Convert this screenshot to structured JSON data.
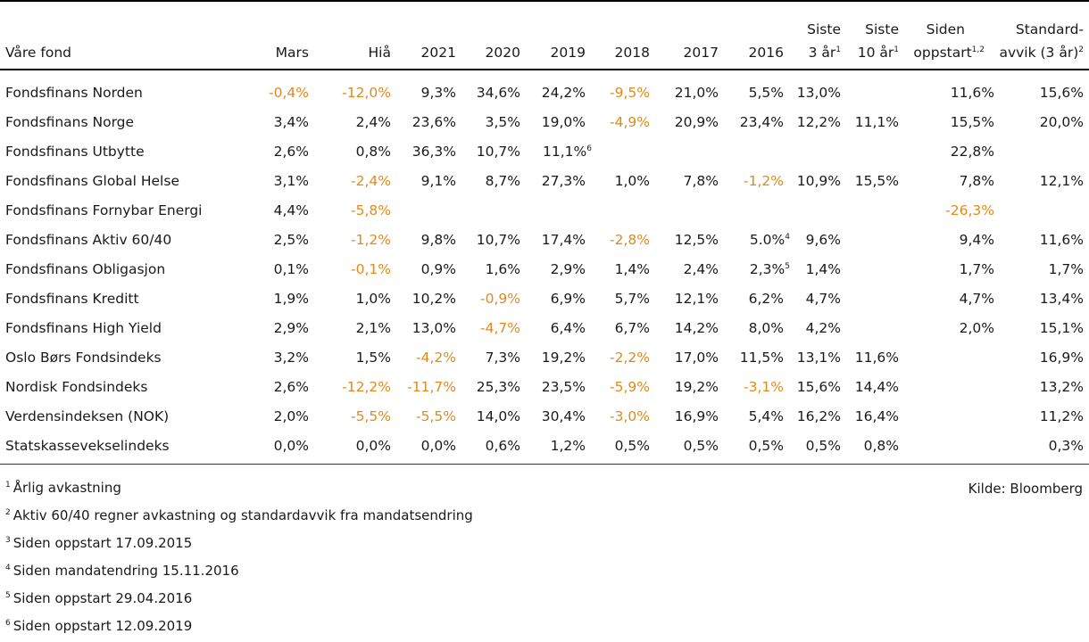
{
  "header": {
    "fund": "Våre fond",
    "mars": "Mars",
    "hia": "Hiå",
    "y2021": "2021",
    "y2020": "2020",
    "y2019": "2019",
    "y2018": "2018",
    "y2017": "2017",
    "y2016": "2016",
    "siste3_line1": "Siste",
    "siste3_line2": "3 år",
    "siste3_sup": "1",
    "siste10_line1": "Siste",
    "siste10_line2": "10 år",
    "siste10_sup": "1",
    "siden_line1": "Siden",
    "siden_line2": "oppstart",
    "siden_sup": "1,2",
    "std_line1": "Standard-",
    "std_line2": "avvik (3 år)",
    "std_sup": "2"
  },
  "rows": [
    {
      "name": "Fondsfinans Norden",
      "mars": "-0,4%",
      "hia": "-12,0%",
      "y2021": "9,3%",
      "y2020": "34,6%",
      "y2019": "24,2%",
      "y2019_sup": "",
      "y2018": "-9,5%",
      "y2017": "21,0%",
      "y2016": "5,5%",
      "y2016_sup": "",
      "s3": "13,0%",
      "s10": "",
      "siden": "11,6%",
      "std": "15,6%"
    },
    {
      "name": "Fondsfinans Norge",
      "mars": "3,4%",
      "hia": "2,4%",
      "y2021": "23,6%",
      "y2020": "3,5%",
      "y2019": "19,0%",
      "y2019_sup": "",
      "y2018": "-4,9%",
      "y2017": "20,9%",
      "y2016": "23,4%",
      "y2016_sup": "",
      "s3": "12,2%",
      "s10": "11,1%",
      "siden": "15,5%",
      "std": "20,0%"
    },
    {
      "name": "Fondsfinans Utbytte",
      "mars": "2,6%",
      "hia": "0,8%",
      "y2021": "36,3%",
      "y2020": "10,7%",
      "y2019": "11,1%",
      "y2019_sup": "6",
      "y2018": "",
      "y2017": "",
      "y2016": "",
      "y2016_sup": "",
      "s3": "",
      "s10": "",
      "siden": "22,8%",
      "std": ""
    },
    {
      "name": "Fondsfinans Global Helse",
      "mars": "3,1%",
      "hia": "-2,4%",
      "y2021": "9,1%",
      "y2020": "8,7%",
      "y2019": "27,3%",
      "y2019_sup": "",
      "y2018": "1,0%",
      "y2017": "7,8%",
      "y2016": "-1,2%",
      "y2016_sup": "",
      "s3": "10,9%",
      "s10": "15,5%",
      "siden": "7,8%",
      "std": "12,1%"
    },
    {
      "name": "Fondsfinans Fornybar Energi",
      "mars": "4,4%",
      "hia": "-5,8%",
      "y2021": "",
      "y2020": "",
      "y2019": "",
      "y2019_sup": "",
      "y2018": "",
      "y2017": "",
      "y2016": "",
      "y2016_sup": "",
      "s3": "",
      "s10": "",
      "siden": "-26,3%",
      "std": ""
    },
    {
      "name": "Fondsfinans Aktiv 60/40",
      "mars": "2,5%",
      "hia": "-1,2%",
      "y2021": "9,8%",
      "y2020": "10,7%",
      "y2019": "17,4%",
      "y2019_sup": "",
      "y2018": "-2,8%",
      "y2017": "12,5%",
      "y2016": "5.0%",
      "y2016_sup": "4",
      "s3": "9,6%",
      "s10": "",
      "siden": "9,4%",
      "std": "11,6%"
    },
    {
      "name": "Fondsfinans Obligasjon",
      "mars": "0,1%",
      "hia": "-0,1%",
      "y2021": "0,9%",
      "y2020": "1,6%",
      "y2019": "2,9%",
      "y2019_sup": "",
      "y2018": "1,4%",
      "y2017": "2,4%",
      "y2016": "2,3%",
      "y2016_sup": "5",
      "s3": "1,4%",
      "s10": "",
      "siden": "1,7%",
      "std": "1,7%"
    },
    {
      "name": "Fondsfinans Kreditt",
      "mars": "1,9%",
      "hia": "1,0%",
      "y2021": "10,2%",
      "y2020": "-0,9%",
      "y2019": "6,9%",
      "y2019_sup": "",
      "y2018": "5,7%",
      "y2017": "12,1%",
      "y2016": "6,2%",
      "y2016_sup": "",
      "s3": "4,7%",
      "s10": "",
      "siden": "4,7%",
      "std": "13,4%"
    },
    {
      "name": "Fondsfinans High Yield",
      "mars": "2,9%",
      "hia": "2,1%",
      "y2021": "13,0%",
      "y2020": "-4,7%",
      "y2019": "6,4%",
      "y2019_sup": "",
      "y2018": "6,7%",
      "y2017": "14,2%",
      "y2016": "8,0%",
      "y2016_sup": "",
      "s3": "4,2%",
      "s10": "",
      "siden": "2,0%",
      "std": "15,1%"
    },
    {
      "name": "Oslo Børs Fondsindeks",
      "mars": "3,2%",
      "hia": "1,5%",
      "y2021": "-4,2%",
      "y2020": "7,3%",
      "y2019": "19,2%",
      "y2019_sup": "",
      "y2018": "-2,2%",
      "y2017": "17,0%",
      "y2016": "11,5%",
      "y2016_sup": "",
      "s3": "13,1%",
      "s10": "11,6%",
      "siden": "",
      "std": "16,9%"
    },
    {
      "name": "Nordisk Fondsindeks",
      "mars": "2,6%",
      "hia": "-12,2%",
      "y2021": "-11,7%",
      "y2020": "25,3%",
      "y2019": "23,5%",
      "y2019_sup": "",
      "y2018": "-5,9%",
      "y2017": "19,2%",
      "y2016": "-3,1%",
      "y2016_sup": "",
      "s3": "15,6%",
      "s10": "14,4%",
      "siden": "",
      "std": "13,2%"
    },
    {
      "name": "Verdensindeksen (NOK)",
      "mars": "2,0%",
      "hia": "-5,5%",
      "y2021": "-5,5%",
      "y2020": "14,0%",
      "y2019": "30,4%",
      "y2019_sup": "",
      "y2018": "-3,0%",
      "y2017": "16,9%",
      "y2016": "5,4%",
      "y2016_sup": "",
      "s3": "16,2%",
      "s10": "16,4%",
      "siden": "",
      "std": "11,2%"
    },
    {
      "name": "Statskassevekselindeks",
      "mars": "0,0%",
      "hia": "0,0%",
      "y2021": "0,0%",
      "y2020": "0,6%",
      "y2019": "1,2%",
      "y2019_sup": "",
      "y2018": "0,5%",
      "y2017": "0,5%",
      "y2016": "0,5%",
      "y2016_sup": "",
      "s3": "0,5%",
      "s10": "0,8%",
      "siden": "",
      "std": "0,3%"
    }
  ],
  "footnotes": [
    {
      "num": "1",
      "text": "Årlig avkastning"
    },
    {
      "num": "2",
      "text": "Aktiv 60/40 regner avkastning og standardavvik fra mandatsendring"
    },
    {
      "num": "3",
      "text": "Siden oppstart 17.09.2015"
    },
    {
      "num": "4",
      "text": "Siden mandatendring 15.11.2016"
    },
    {
      "num": "5",
      "text": "Siden oppstart 29.04.2016"
    },
    {
      "num": "6",
      "text": "Siden oppstart 12.09.2019"
    }
  ],
  "source": "Kilde: Bloomberg",
  "colors": {
    "negative": "#e08a1e",
    "text": "#1a1a1a"
  }
}
